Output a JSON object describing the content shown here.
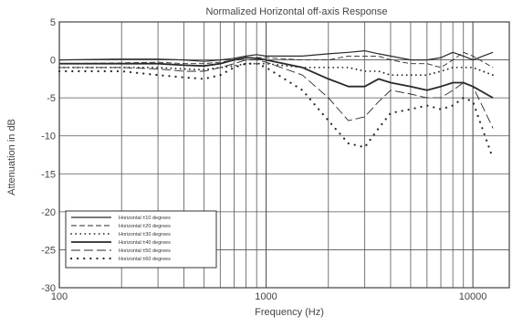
{
  "chart_data": {
    "type": "line",
    "title": "Normalized Horizontal off-axis Response",
    "xlabel": "Frequency (Hz)",
    "ylabel": "Attenuation in dB",
    "xscale": "log",
    "xlim": [
      100,
      15000
    ],
    "ylim": [
      -30,
      5
    ],
    "grid": true,
    "x_ticks": [
      100,
      1000,
      10000
    ],
    "x_tick_labels": [
      "100",
      "1000",
      "10000"
    ],
    "y_ticks": [
      5,
      0,
      -5,
      -10,
      -15,
      -20,
      -25,
      -30
    ],
    "y_tick_labels": [
      "5",
      "0",
      "-5",
      "-10",
      "-15",
      "-20",
      "-25",
      "-30"
    ],
    "legend_position": "bottom-left",
    "series": [
      {
        "name": "Horizontal ±10 degrees",
        "style": "solid-thin",
        "x": [
          100,
          200,
          300,
          400,
          500,
          600,
          700,
          800,
          900,
          1000,
          1500,
          2000,
          2500,
          3000,
          3500,
          4000,
          5000,
          6000,
          7000,
          8000,
          9000,
          10000,
          12500
        ],
        "y": [
          0,
          0.1,
          0.1,
          0,
          -0.2,
          0,
          0.2,
          0.5,
          0.7,
          0.5,
          0.5,
          0.8,
          1,
          1.2,
          0.8,
          0.5,
          0,
          0,
          0.3,
          1,
          0.5,
          0,
          1
        ]
      },
      {
        "name": "Horizontal ±20 degrees",
        "style": "dashed",
        "x": [
          100,
          200,
          300,
          400,
          500,
          600,
          700,
          800,
          900,
          1000,
          1500,
          2000,
          2500,
          3000,
          3500,
          4000,
          5000,
          6000,
          7000,
          8000,
          9000,
          10000,
          12500
        ],
        "y": [
          -0.5,
          -0.4,
          -0.3,
          -0.5,
          -0.5,
          -0.3,
          0,
          0.3,
          0.3,
          0.3,
          0,
          0,
          0.5,
          0.5,
          0.5,
          0,
          -0.5,
          -0.5,
          -1,
          0,
          1,
          0.5,
          -1
        ]
      },
      {
        "name": "Horizontal ±30 degrees",
        "style": "dotted",
        "x": [
          100,
          200,
          300,
          400,
          500,
          600,
          700,
          800,
          900,
          1000,
          1500,
          2000,
          2500,
          3000,
          3500,
          4000,
          5000,
          6000,
          7000,
          8000,
          9000,
          10000,
          12500
        ],
        "y": [
          -1,
          -1,
          -1,
          -1.2,
          -1.3,
          -1,
          -0.8,
          -0.5,
          -0.5,
          -0.5,
          -1,
          -1,
          -1,
          -1.5,
          -1.5,
          -2,
          -2,
          -2,
          -1.5,
          -1,
          -1,
          -1,
          -2
        ]
      },
      {
        "name": "Horizontal ±40 degrees",
        "style": "solid-thick",
        "x": [
          100,
          200,
          300,
          400,
          500,
          600,
          700,
          800,
          900,
          1000,
          1500,
          2000,
          2500,
          3000,
          3500,
          4000,
          5000,
          6000,
          7000,
          8000,
          9000,
          10000,
          12500
        ],
        "y": [
          -0.5,
          -0.5,
          -0.5,
          -0.7,
          -0.8,
          -0.5,
          0,
          0.3,
          0.2,
          0,
          -1,
          -2.5,
          -3.5,
          -3.5,
          -2.5,
          -3,
          -3.5,
          -4,
          -3.5,
          -3,
          -3,
          -3.5,
          -5
        ]
      },
      {
        "name": "Horizontal ±50 degrees",
        "style": "long-dash",
        "x": [
          100,
          200,
          300,
          400,
          500,
          600,
          700,
          800,
          900,
          1000,
          1500,
          2000,
          2500,
          3000,
          3500,
          4000,
          5000,
          6000,
          7000,
          8000,
          9000,
          10000,
          12500
        ],
        "y": [
          -1,
          -1,
          -1.2,
          -1.5,
          -1.5,
          -1,
          -0.5,
          0,
          0,
          -0.3,
          -2,
          -5,
          -8,
          -7.5,
          -5.5,
          -4,
          -4.5,
          -5,
          -5,
          -4,
          -3,
          -3.5,
          -9
        ]
      },
      {
        "name": "Horizontal ±60 degrees",
        "style": "dotted-sparse",
        "x": [
          100,
          200,
          300,
          400,
          500,
          600,
          700,
          800,
          900,
          1000,
          1500,
          2000,
          2500,
          3000,
          3500,
          4000,
          5000,
          6000,
          7000,
          8000,
          9000,
          10000,
          12500
        ],
        "y": [
          -1.5,
          -1.5,
          -2,
          -2.3,
          -2.5,
          -2,
          -1,
          -0.5,
          -0.5,
          -1,
          -4,
          -8,
          -11,
          -11.5,
          -9,
          -7,
          -6.5,
          -6,
          -6.5,
          -6,
          -5,
          -5.5,
          -13
        ]
      }
    ]
  }
}
